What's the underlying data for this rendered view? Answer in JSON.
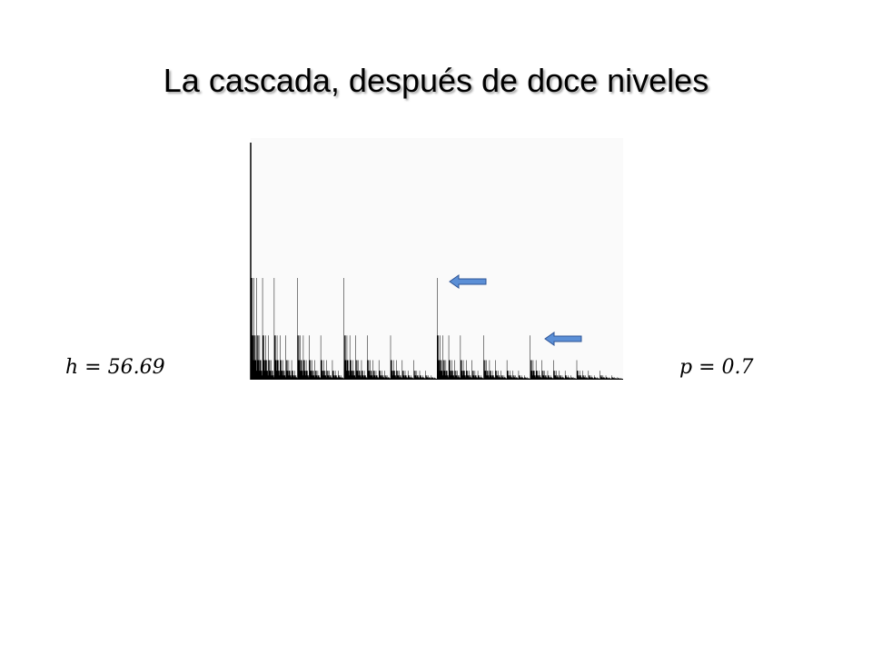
{
  "title": "La cascada, después de doce niveles",
  "left_label": "h = 56.69",
  "right_label": "p = 0.7"
}
